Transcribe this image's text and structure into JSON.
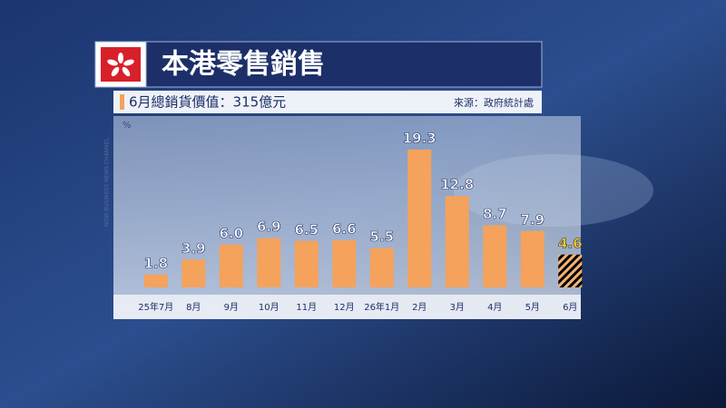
{
  "chart_data": {
    "type": "bar",
    "title": "本港零售銷售",
    "subtitle": "6月總銷貨價值：315億元",
    "source": "來源：政府統計處",
    "unit": "%",
    "channel": "NOW BUSINESS NEWS CHANNEL",
    "categories": [
      "25年7月",
      "8月",
      "9月",
      "10月",
      "11月",
      "12月",
      "26年1月",
      "2月",
      "3月",
      "4月",
      "5月",
      "6月"
    ],
    "values": [
      1.8,
      3.9,
      6.0,
      6.9,
      6.5,
      6.6,
      5.5,
      19.3,
      12.8,
      8.7,
      7.9,
      4.6
    ],
    "value_labels": [
      "1.8",
      "3.9",
      "6.0",
      "6.9",
      "6.5",
      "6.6",
      "5.5",
      "19.3",
      "12.8",
      "8.7",
      "7.9",
      "4.6"
    ],
    "colors": [
      "#f4a25c",
      "#f4a25c",
      "#f4a25c",
      "#f4a25c",
      "#f4a25c",
      "#f4a25c",
      "#f4a25c",
      "#f4a25c",
      "#f4a25c",
      "#f4a25c",
      "#f4a25c",
      "#d8401c"
    ],
    "ylim": [
      0,
      24
    ]
  }
}
